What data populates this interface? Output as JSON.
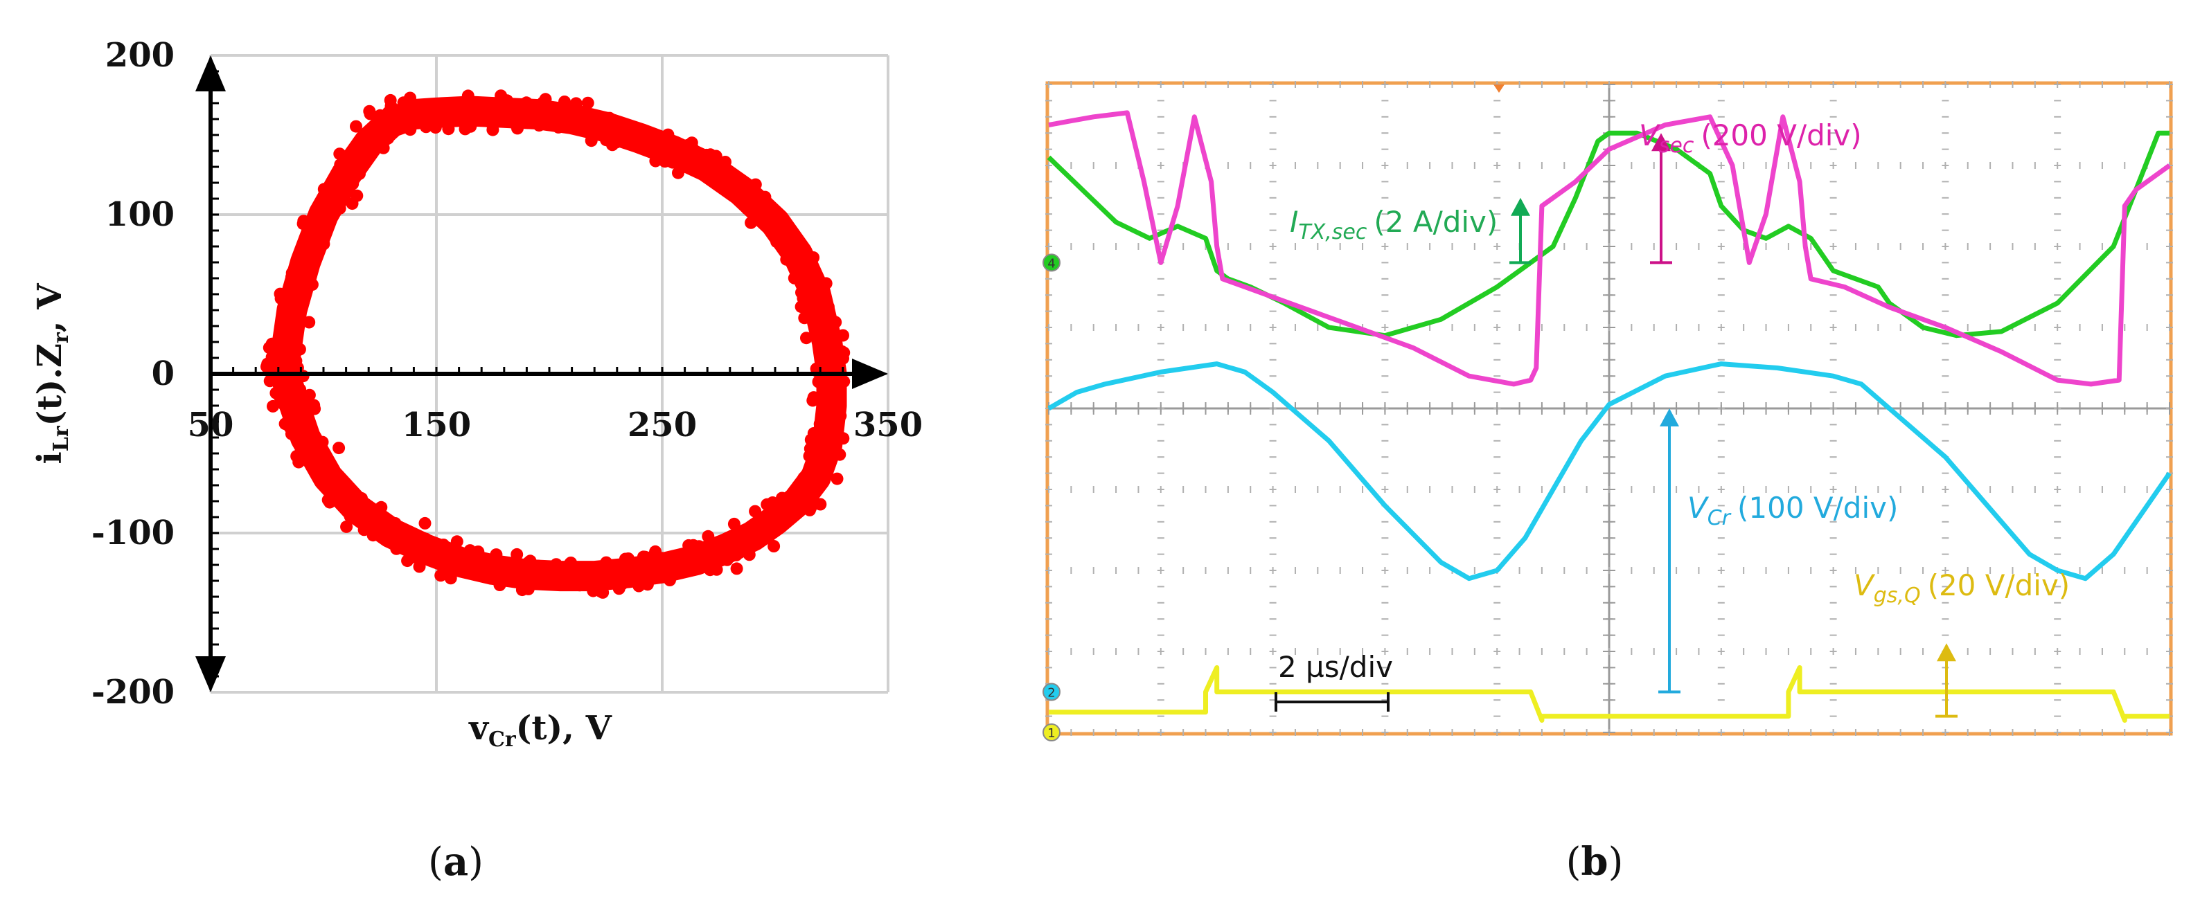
{
  "chart_data": [
    {
      "id": "a",
      "type": "scatter",
      "panel_label": "a",
      "xlabel": "v",
      "xlabel_sub": "Cr",
      "xlabel_rest": "(t), V",
      "ylabel": "i",
      "ylabel_sub1": "Lr",
      "ylabel_mid": "(t).Z",
      "ylabel_sub2": "r",
      "ylabel_rest": ", V",
      "xlim": [
        50,
        350
      ],
      "ylim": [
        -200,
        200
      ],
      "xticks": [
        "50",
        "150",
        "250",
        "350"
      ],
      "yticks": [
        "200",
        "100",
        "0",
        "-100",
        "-200"
      ],
      "grid": true,
      "series_color": "#ff0000",
      "series": [
        {
          "x": [
            83,
            86,
            92,
            100,
            110,
            120,
            130,
            140,
            150,
            165,
            180,
            195,
            210,
            225,
            240,
            255,
            270,
            285,
            300,
            310,
            318,
            323,
            325,
            325,
            323,
            318,
            310,
            300,
            290,
            278,
            265,
            250,
            235,
            220,
            205,
            190,
            175,
            160,
            145,
            130,
            115,
            102,
            92,
            86,
            83,
            82,
            83
          ],
          "y": [
            10,
            40,
            70,
            100,
            125,
            145,
            158,
            163,
            164,
            165,
            164,
            163,
            160,
            155,
            148,
            140,
            130,
            115,
            95,
            75,
            50,
            20,
            0,
            -20,
            -45,
            -65,
            -80,
            -92,
            -102,
            -110,
            -117,
            -122,
            -125,
            -127,
            -127,
            -126,
            -123,
            -118,
            -110,
            -100,
            -85,
            -65,
            -40,
            -15,
            0,
            5,
            10
          ]
        }
      ]
    },
    {
      "id": "b",
      "type": "line",
      "panel_label": "b",
      "xlim": [
        0,
        20
      ],
      "ylim": [
        -4,
        4
      ],
      "divisions": {
        "x": 10,
        "y": 8
      },
      "grid": true,
      "timebase": "2 µs/div",
      "series": [
        {
          "name": "I",
          "name_sub": "TX,sec",
          "scale": "(2 A/div)",
          "color": "#22cc22",
          "label_color": "#22aa55",
          "marker_color": "#11aa55",
          "marker_y": [
            1.8,
            2.6
          ],
          "x": [
            0,
            0.6,
            1.2,
            1.8,
            2.3,
            2.8,
            3.0,
            3.2,
            3.6,
            4.2,
            5.0,
            6.0,
            7.0,
            8.0,
            9.0,
            9.4,
            9.8,
            10.0,
            10.5,
            11.2,
            11.8,
            12.0,
            12.4,
            12.8,
            13.2,
            13.6,
            14.0,
            14.4,
            14.8,
            15.0,
            15.2,
            15.6,
            16.2,
            17.0,
            18.0,
            19.0,
            19.4,
            19.8,
            20.0
          ],
          "y": [
            3.1,
            2.7,
            2.3,
            2.1,
            2.25,
            2.1,
            1.7,
            1.6,
            1.5,
            1.3,
            1.0,
            0.9,
            1.1,
            1.5,
            2.0,
            2.6,
            3.3,
            3.4,
            3.4,
            3.2,
            2.9,
            2.5,
            2.2,
            2.1,
            2.25,
            2.1,
            1.7,
            1.6,
            1.5,
            1.3,
            1.2,
            1.0,
            0.9,
            0.95,
            1.3,
            2.0,
            2.7,
            3.4,
            3.4
          ]
        },
        {
          "name": "V",
          "name_sub": "sec",
          "scale": "(200 V/div)",
          "color": "#ee44cc",
          "label_color": "#dd22aa",
          "marker_color": "#cc1188",
          "marker_y": [
            1.8,
            3.4
          ],
          "x": [
            0,
            0.4,
            0.8,
            1.4,
            1.7,
            2.0,
            2.3,
            2.6,
            2.9,
            3.0,
            3.1,
            3.5,
            4.5,
            5.5,
            6.5,
            7.5,
            8.3,
            8.6,
            8.7,
            8.8,
            9.4,
            10.0,
            11.0,
            11.8,
            12.2,
            12.5,
            12.8,
            13.1,
            13.4,
            13.5,
            13.6,
            14.2,
            15.0,
            16.0,
            17.0,
            18.0,
            18.6,
            19.1,
            19.2,
            19.4,
            20.0
          ],
          "y": [
            3.5,
            3.55,
            3.6,
            3.65,
            2.8,
            1.8,
            2.5,
            3.6,
            2.8,
            2.0,
            1.6,
            1.5,
            1.25,
            1.0,
            0.75,
            0.4,
            0.3,
            0.35,
            0.5,
            2.5,
            2.8,
            3.2,
            3.5,
            3.6,
            3.0,
            1.8,
            2.4,
            3.6,
            2.8,
            2.0,
            1.6,
            1.5,
            1.25,
            1.0,
            0.7,
            0.35,
            0.3,
            0.35,
            2.5,
            2.7,
            3.0
          ]
        },
        {
          "name": "V",
          "name_sub": "Cr",
          "scale": "(100 V/div)",
          "color": "#22ccee",
          "label_color": "#22aadd",
          "marker_color": "#22aadd",
          "marker_y": [
            -3.5,
            0.0
          ],
          "x": [
            0,
            0.5,
            1.0,
            2.0,
            3.0,
            3.5,
            4.0,
            5.0,
            6.0,
            7.0,
            7.5,
            8.0,
            8.5,
            9.0,
            9.5,
            10.0,
            11.0,
            12.0,
            13.0,
            14.0,
            14.5,
            15.0,
            16.0,
            17.0,
            17.5,
            18.0,
            18.5,
            19.0,
            19.5,
            20.0
          ],
          "y": [
            0.0,
            0.2,
            0.3,
            0.45,
            0.55,
            0.45,
            0.2,
            -0.4,
            -1.2,
            -1.9,
            -2.1,
            -2.0,
            -1.6,
            -1.0,
            -0.4,
            0.05,
            0.4,
            0.55,
            0.5,
            0.4,
            0.3,
            0.0,
            -0.6,
            -1.4,
            -1.8,
            -2.0,
            -2.1,
            -1.8,
            -1.3,
            -0.8
          ]
        },
        {
          "name": "V",
          "name_sub": "gs,Q",
          "scale": "(20 V/div)",
          "color": "#eeee22",
          "label_color": "#ddbb11",
          "marker_color": "#ddbb11",
          "marker_y": [
            -3.8,
            -2.9
          ],
          "x": [
            0,
            2.8,
            2.8,
            3.0,
            3.0,
            8.6,
            8.6,
            8.8,
            8.8,
            13.2,
            13.2,
            13.4,
            13.4,
            19.0,
            19.0,
            19.2,
            19.2,
            20.0
          ],
          "y": [
            -3.75,
            -3.75,
            -3.5,
            -3.2,
            -3.5,
            -3.5,
            -3.5,
            -3.85,
            -3.8,
            -3.8,
            -3.5,
            -3.2,
            -3.5,
            -3.5,
            -3.5,
            -3.85,
            -3.8,
            -3.8
          ]
        }
      ],
      "channel_markers": [
        {
          "label": "4",
          "y": 1.8,
          "color": "#22cc22"
        },
        {
          "label": "2",
          "y": -3.5,
          "color": "#22ccee"
        },
        {
          "label": "1",
          "y": -4.0,
          "color": "#eeee22"
        }
      ]
    }
  ]
}
